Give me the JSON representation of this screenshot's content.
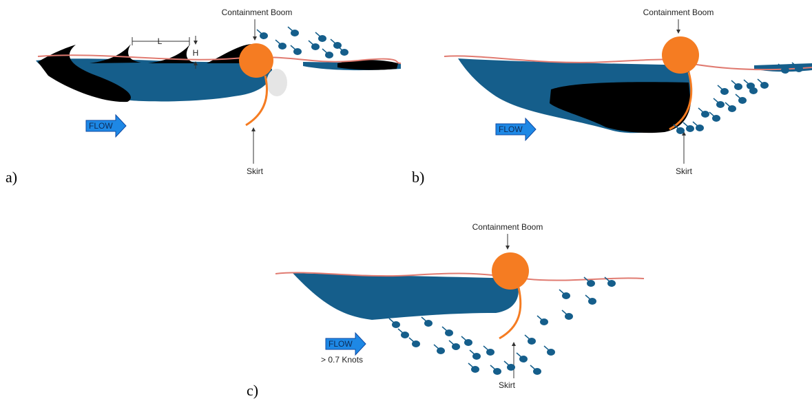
{
  "panels": [
    {
      "label": "a)",
      "boom_label": "Containment Boom",
      "skirt_label": "Skirt",
      "flow_label": "FLOW",
      "wave_length_label": "L",
      "wave_height_label": "H"
    },
    {
      "label": "b)",
      "boom_label": "Containment Boom",
      "skirt_label": "Skirt",
      "flow_label": "FLOW"
    },
    {
      "label": "c)",
      "boom_label": "Containment Boom",
      "skirt_label": "Skirt",
      "flow_label": "FLOW",
      "flow_note": "> 0.7 Knots"
    }
  ]
}
